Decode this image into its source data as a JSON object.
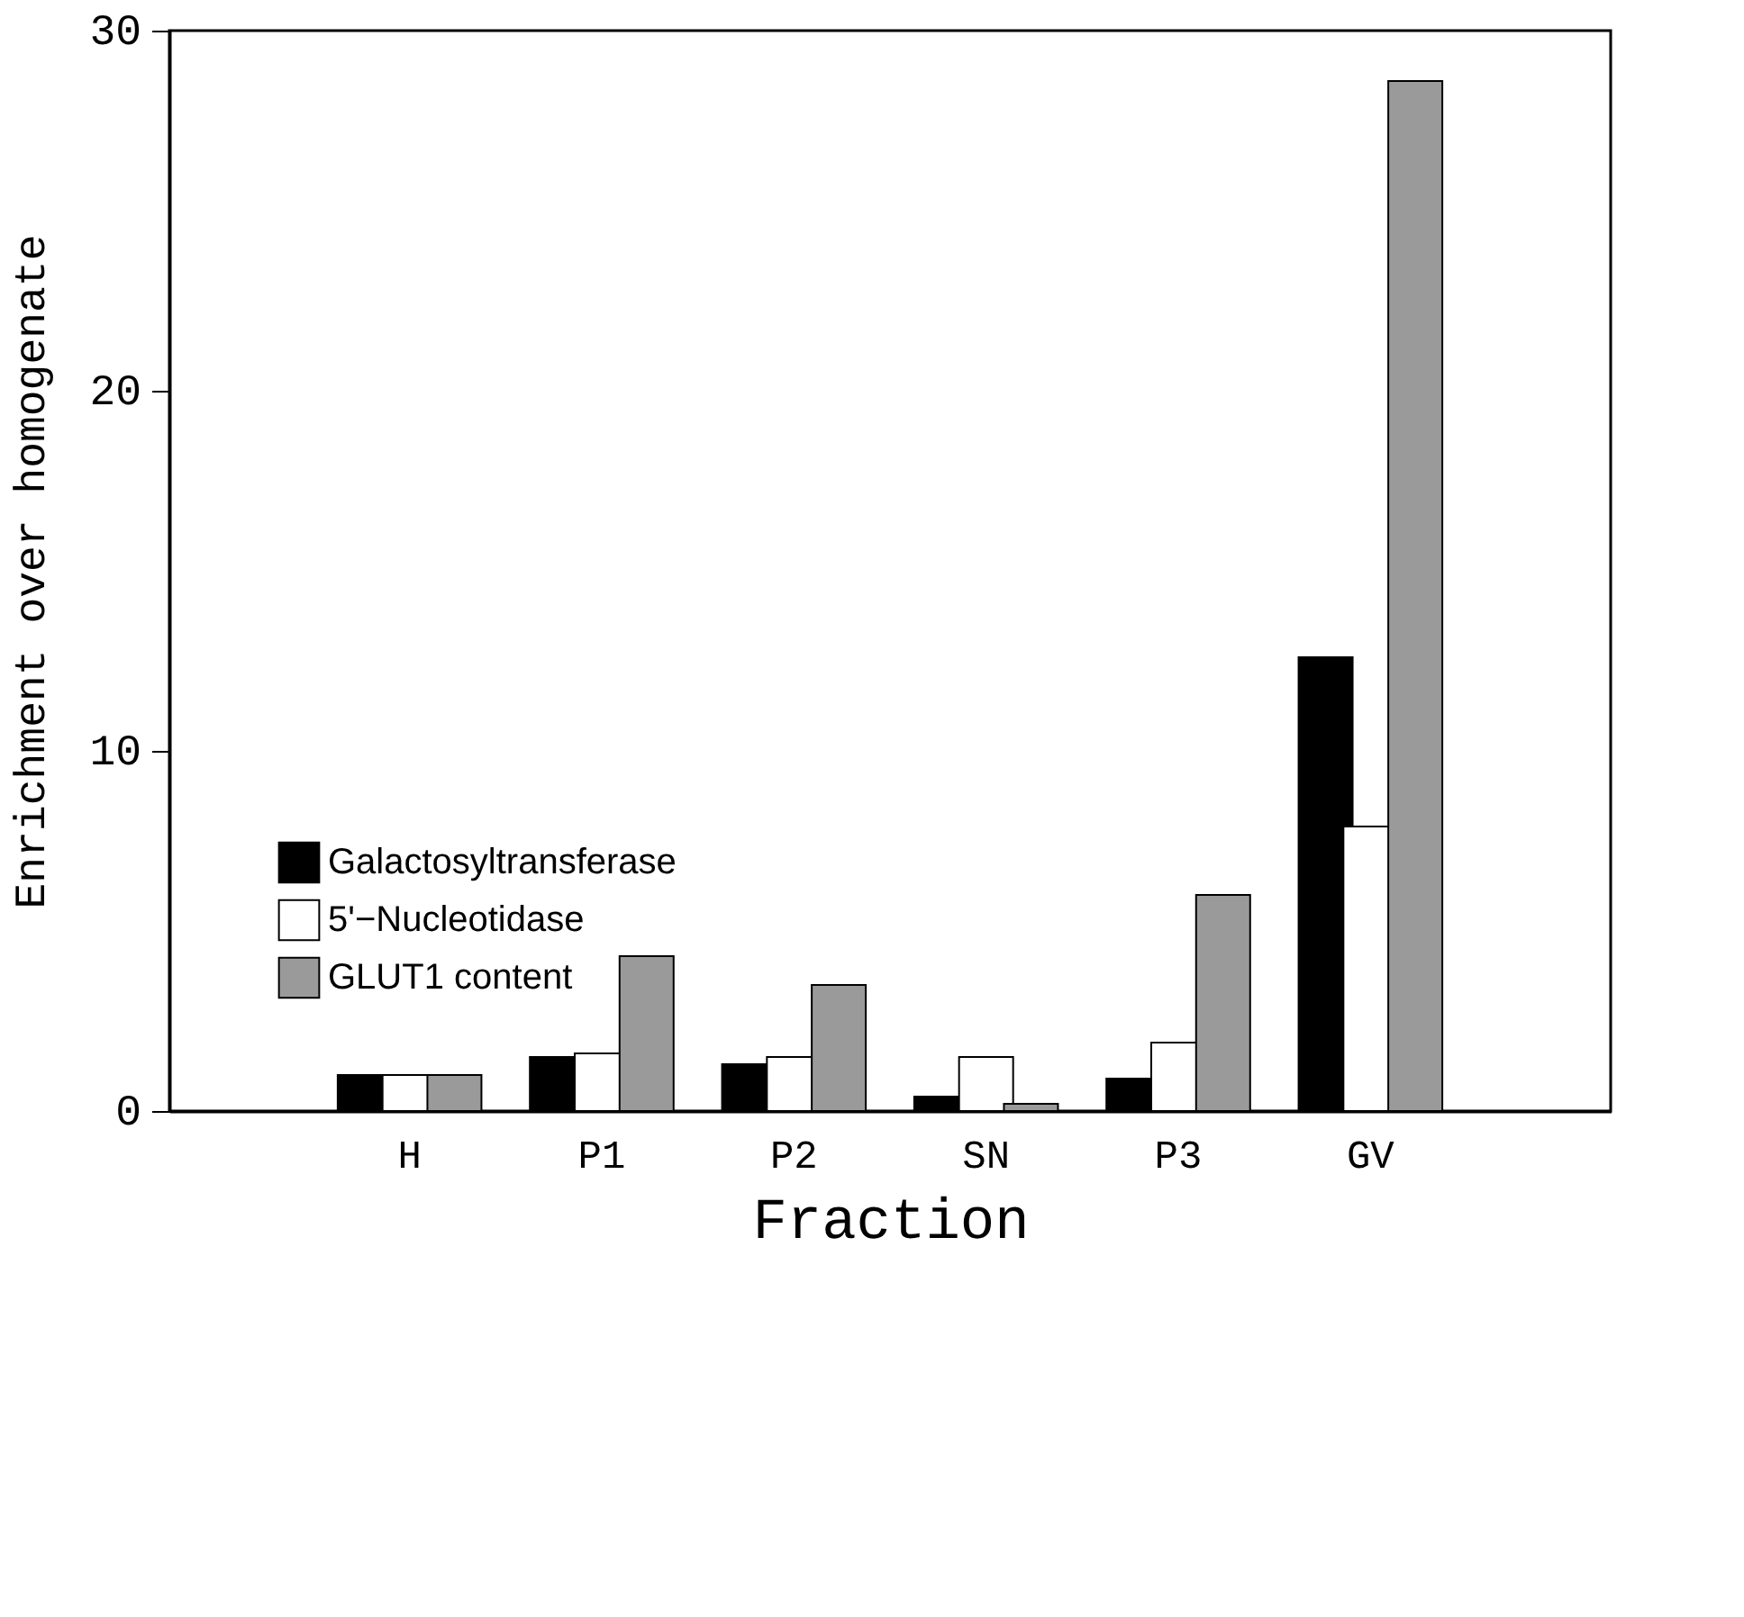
{
  "chart_data": {
    "type": "bar",
    "xlabel": "Fraction",
    "ylabel": "Enrichment over homogenate",
    "categories": [
      "H",
      "P1",
      "P2",
      "SN",
      "P3",
      "GV"
    ],
    "series": [
      {
        "name": "Galactosyltransferase",
        "color": "#000000",
        "values": [
          1.0,
          1.5,
          1.3,
          0.4,
          0.9,
          12.6
        ]
      },
      {
        "name": "5'−Nucleotidase",
        "color": "#ffffff",
        "values": [
          1.0,
          1.6,
          1.5,
          1.5,
          1.9,
          7.9
        ]
      },
      {
        "name": "GLUT1 content",
        "color": "#9a9a9a",
        "values": [
          1.0,
          4.3,
          3.5,
          0.2,
          6.0,
          28.6
        ]
      }
    ],
    "ylim": [
      0,
      30
    ],
    "yticks": [
      0,
      10,
      20,
      30
    ],
    "grid": false,
    "legend": "bottom left"
  }
}
